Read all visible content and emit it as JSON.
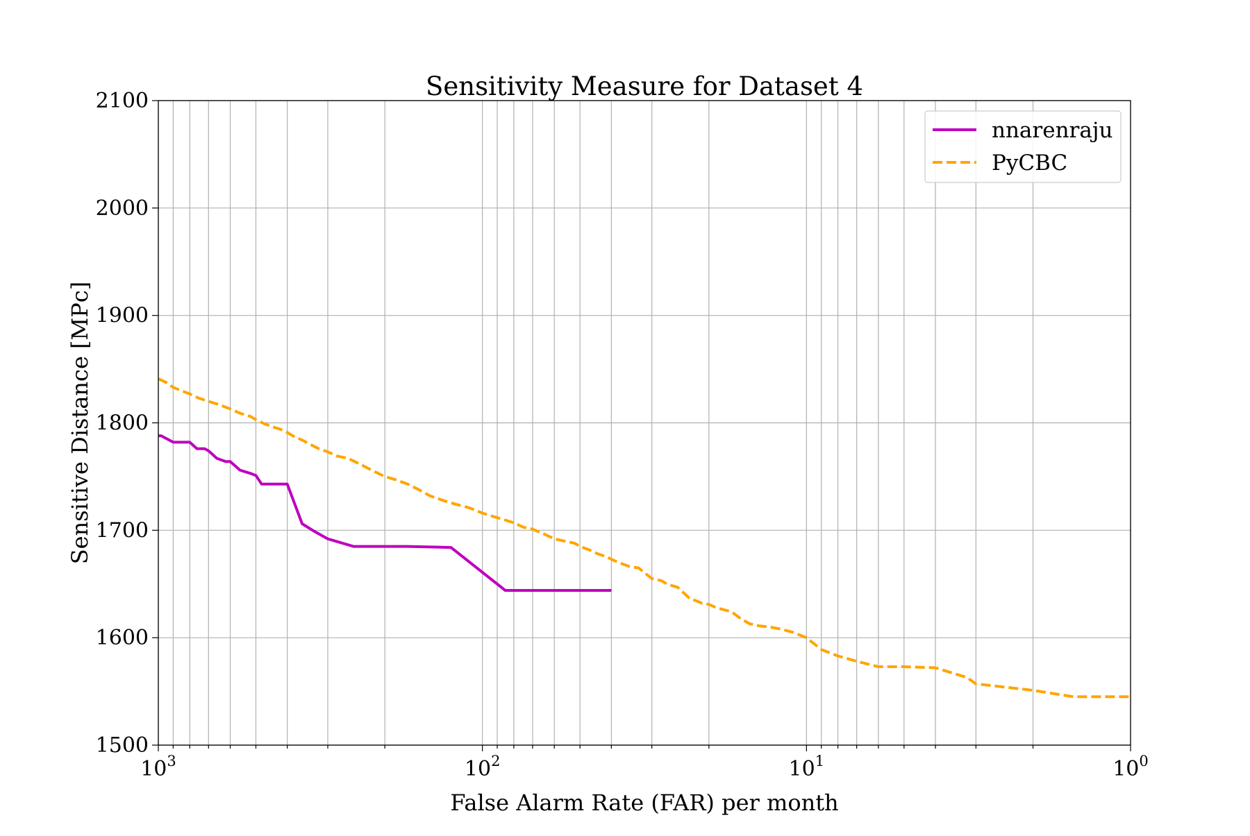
{
  "chart_data": {
    "type": "line",
    "title": "Sensitivity Measure for Dataset 4",
    "xlabel": "False Alarm Rate (FAR) per month",
    "ylabel": "Sensitive Distance [MPc]",
    "xscale": "log",
    "x_reversed": true,
    "xlim": [
      1000,
      1
    ],
    "ylim": [
      1500,
      2100
    ],
    "grid": true,
    "legend_position": "top-right",
    "x_ticks": [
      {
        "value": 1000,
        "base": "10",
        "exp": "3"
      },
      {
        "value": 100,
        "base": "10",
        "exp": "2"
      },
      {
        "value": 10,
        "base": "10",
        "exp": "1"
      },
      {
        "value": 1,
        "base": "10",
        "exp": "0"
      }
    ],
    "y_ticks": [
      "1500",
      "1600",
      "1700",
      "1800",
      "1900",
      "2000",
      "2100"
    ],
    "series": [
      {
        "name": "nnarenraju",
        "color": "#bf00bf",
        "style": "solid",
        "x": [
          1000,
          980,
          900,
          820,
          800,
          760,
          720,
          700,
          660,
          620,
          600,
          560,
          520,
          500,
          480,
          420,
          400,
          360,
          330,
          300,
          250,
          240,
          210,
          170,
          125,
          85,
          83,
          41,
          40
        ],
        "y": [
          1788,
          1788,
          1782,
          1782,
          1782,
          1776,
          1776,
          1774,
          1767,
          1764,
          1764,
          1756,
          1753,
          1751,
          1743,
          1743,
          1743,
          1706,
          1699,
          1692,
          1685,
          1685,
          1685,
          1685,
          1684,
          1644,
          1644,
          1644,
          1644
        ]
      },
      {
        "name": "PyCBC",
        "color": "#ffa500",
        "style": "dashed",
        "x": [
          1000,
          950,
          900,
          850,
          800,
          750,
          700,
          650,
          600,
          560,
          520,
          500,
          470,
          440,
          420,
          400,
          380,
          360,
          340,
          320,
          300,
          280,
          260,
          240,
          220,
          200,
          185,
          170,
          160,
          145,
          130,
          120,
          110,
          100,
          93,
          86,
          80,
          75,
          70,
          65,
          60,
          56,
          52,
          50,
          47,
          44,
          42,
          40,
          38,
          35,
          33,
          30,
          28,
          27,
          25,
          23,
          21,
          20,
          19,
          17,
          16,
          15,
          14,
          13,
          12,
          11,
          10,
          9,
          8,
          7,
          6,
          5,
          4,
          3.2,
          3,
          2,
          1.5,
          1.2,
          1
        ],
        "y": [
          1841,
          1838,
          1833,
          1830,
          1827,
          1823,
          1820,
          1817,
          1813,
          1809,
          1806,
          1803,
          1799,
          1796,
          1794,
          1791,
          1787,
          1784,
          1780,
          1776,
          1773,
          1769,
          1767,
          1762,
          1756,
          1750,
          1747,
          1743,
          1739,
          1732,
          1727,
          1724,
          1721,
          1716,
          1713,
          1710,
          1707,
          1703,
          1701,
          1697,
          1692,
          1690,
          1688,
          1685,
          1682,
          1678,
          1676,
          1673,
          1670,
          1666,
          1665,
          1655,
          1653,
          1650,
          1647,
          1637,
          1632,
          1631,
          1628,
          1624,
          1618,
          1613,
          1611,
          1610,
          1608,
          1605,
          1600,
          1589,
          1583,
          1578,
          1573,
          1573,
          1572,
          1563,
          1557,
          1551,
          1545,
          1545,
          1545
        ]
      }
    ]
  }
}
